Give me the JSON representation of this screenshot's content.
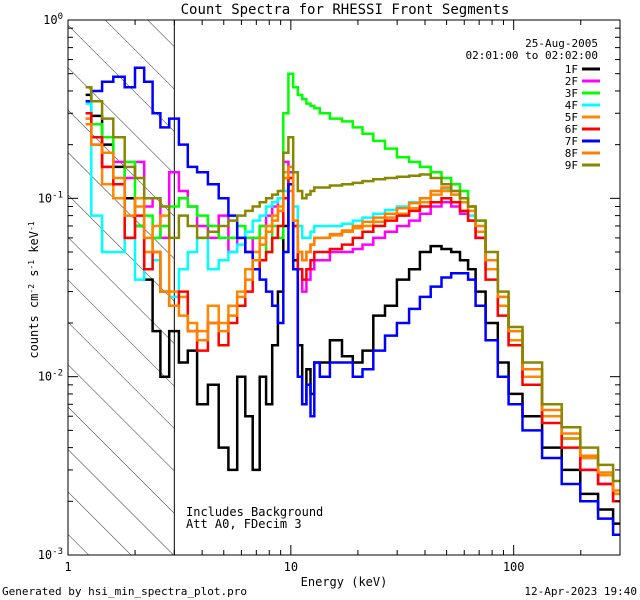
{
  "chart_data": {
    "type": "line",
    "title": "Count Spectra for RHESSI Front Segments",
    "xlabel": "Energy (keV)",
    "ylabel_main": "counts cm",
    "ylabel_e1": "-2",
    "ylabel_mid": " s",
    "ylabel_e2": "-1",
    "ylabel_end": " keV",
    "ylabel_e3": "-1",
    "xscale": "log",
    "yscale": "log",
    "xlim": [
      1,
      300
    ],
    "ylim": [
      0.001,
      1
    ],
    "x_ticks": [
      {
        "value": 1,
        "label": "1"
      },
      {
        "value": 10,
        "label": "10"
      },
      {
        "value": 100,
        "label": "100"
      }
    ],
    "y_ticks": [
      {
        "value": 1,
        "base": "10",
        "exp": "0"
      },
      {
        "value": 0.1,
        "base": "10",
        "exp": "-1"
      },
      {
        "value": 0.01,
        "base": "10",
        "exp": "-2"
      },
      {
        "value": 0.001,
        "base": "10",
        "exp": "-3"
      }
    ],
    "hatched_region": {
      "x_min": 1,
      "x_max": 3
    },
    "date": "25-Aug-2005",
    "time_range": "02:01:00 to 02:02:00",
    "legend_position": "top-right",
    "annotation_line1": "Includes Background",
    "annotation_line2": "Att A0, FDecim 3",
    "footer_left": "Generated by hsi_min_spectra_plot.pro",
    "footer_right": "12-Apr-2023 19:40",
    "series": [
      {
        "name": "1F",
        "color": "#000000",
        "x": [
          1.2,
          1.35,
          1.5,
          1.7,
          1.9,
          2.1,
          2.3,
          2.5,
          2.7,
          3.0,
          3.3,
          3.6,
          4.0,
          4.5,
          5.0,
          5.5,
          6.0,
          6.5,
          7.0,
          7.5,
          8.0,
          8.5,
          9.0,
          9.5,
          10.0,
          10.5,
          11.0,
          11.5,
          12.0,
          12.5,
          13.0,
          14,
          16,
          18,
          20,
          22,
          25,
          28,
          32,
          36,
          40,
          45,
          50,
          55,
          60,
          65,
          70,
          80,
          90,
          100,
          120,
          150,
          180,
          220,
          260,
          300
        ],
        "y": [
          0.38,
          0.29,
          0.2,
          0.15,
          0.1,
          0.07,
          0.035,
          0.018,
          0.01,
          0.018,
          0.012,
          0.014,
          0.007,
          0.009,
          0.004,
          0.003,
          0.01,
          0.006,
          0.003,
          0.01,
          0.007,
          0.015,
          0.03,
          0.07,
          0.12,
          0.045,
          0.015,
          0.007,
          0.011,
          0.008,
          0.012,
          0.012,
          0.016,
          0.013,
          0.012,
          0.014,
          0.022,
          0.025,
          0.035,
          0.04,
          0.05,
          0.054,
          0.052,
          0.05,
          0.045,
          0.04,
          0.03,
          0.02,
          0.012,
          0.008,
          0.006,
          0.004,
          0.003,
          0.0022,
          0.0018,
          0.0015
        ]
      },
      {
        "name": "2F",
        "color": "#ff00ff",
        "x": [
          1.2,
          1.35,
          1.5,
          1.7,
          1.9,
          2.1,
          2.3,
          2.5,
          2.7,
          3.0,
          3.3,
          3.6,
          4.0,
          4.5,
          5.0,
          5.5,
          6.0,
          6.5,
          7.0,
          7.5,
          8.0,
          8.5,
          9.0,
          9.5,
          10.0,
          10.5,
          11.0,
          11.5,
          12.0,
          12.5,
          13.0,
          14,
          16,
          18,
          20,
          22,
          25,
          28,
          32,
          36,
          40,
          45,
          50,
          55,
          60,
          65,
          70,
          80,
          90,
          100,
          120,
          150,
          180,
          220,
          260,
          300
        ],
        "y": [
          0.28,
          0.2,
          0.15,
          0.16,
          0.13,
          0.16,
          0.09,
          0.1,
          0.06,
          0.14,
          0.11,
          0.09,
          0.07,
          0.06,
          0.08,
          0.05,
          0.06,
          0.05,
          0.06,
          0.07,
          0.08,
          0.09,
          0.1,
          0.16,
          0.14,
          0.07,
          0.04,
          0.03,
          0.035,
          0.04,
          0.045,
          0.045,
          0.05,
          0.05,
          0.052,
          0.055,
          0.06,
          0.065,
          0.07,
          0.075,
          0.082,
          0.09,
          0.095,
          0.09,
          0.082,
          0.075,
          0.06,
          0.04,
          0.025,
          0.016,
          0.01,
          0.006,
          0.0045,
          0.003,
          0.0025,
          0.002
        ]
      },
      {
        "name": "3F",
        "color": "#00ff00",
        "x": [
          1.2,
          1.35,
          1.5,
          1.7,
          1.9,
          2.1,
          2.3,
          2.5,
          2.7,
          3.0,
          3.3,
          3.6,
          4.0,
          4.5,
          5.0,
          5.5,
          6.0,
          6.5,
          7.0,
          7.5,
          8.0,
          8.5,
          9.0,
          9.5,
          10.0,
          10.5,
          11.0,
          11.5,
          12.0,
          12.5,
          13.0,
          14,
          16,
          18,
          20,
          22,
          25,
          28,
          32,
          36,
          40,
          45,
          50,
          55,
          60,
          65,
          70,
          80,
          90,
          100,
          120,
          150,
          180,
          220,
          260,
          300
        ],
        "y": [
          0.3,
          0.26,
          0.22,
          0.12,
          0.16,
          0.07,
          0.08,
          0.06,
          0.07,
          0.09,
          0.1,
          0.09,
          0.08,
          0.07,
          0.06,
          0.06,
          0.07,
          0.06,
          0.06,
          0.07,
          0.05,
          0.07,
          0.06,
          0.3,
          0.5,
          0.42,
          0.38,
          0.36,
          0.34,
          0.33,
          0.32,
          0.3,
          0.28,
          0.27,
          0.25,
          0.23,
          0.21,
          0.19,
          0.17,
          0.16,
          0.15,
          0.14,
          0.13,
          0.12,
          0.11,
          0.09,
          0.075,
          0.045,
          0.028,
          0.018,
          0.011,
          0.006,
          0.0045,
          0.0035,
          0.0028,
          0.0022
        ]
      },
      {
        "name": "4F",
        "color": "#00ffff",
        "x": [
          1.2,
          1.35,
          1.5,
          1.7,
          1.9,
          2.1,
          2.3,
          2.5,
          2.7,
          3.0,
          3.3,
          3.6,
          4.0,
          4.5,
          5.0,
          5.5,
          6.0,
          6.5,
          7.0,
          7.5,
          8.0,
          8.5,
          9.0,
          9.5,
          10.0,
          10.5,
          11.0,
          11.5,
          12.0,
          12.5,
          13.0,
          14,
          16,
          18,
          20,
          22,
          25,
          28,
          32,
          36,
          40,
          45,
          50,
          55,
          60,
          65,
          70,
          80,
          90,
          100,
          120,
          150,
          180,
          220,
          260,
          300
        ],
        "y": [
          0.34,
          0.08,
          0.05,
          0.05,
          0.06,
          0.035,
          0.04,
          0.045,
          0.03,
          0.028,
          0.04,
          0.05,
          0.06,
          0.04,
          0.045,
          0.05,
          0.055,
          0.065,
          0.075,
          0.08,
          0.09,
          0.095,
          0.1,
          0.11,
          0.12,
          0.09,
          0.07,
          0.06,
          0.06,
          0.065,
          0.07,
          0.07,
          0.07,
          0.072,
          0.075,
          0.078,
          0.082,
          0.086,
          0.09,
          0.095,
          0.1,
          0.11,
          0.112,
          0.105,
          0.095,
          0.08,
          0.065,
          0.04,
          0.025,
          0.016,
          0.01,
          0.006,
          0.0045,
          0.0035,
          0.0028,
          0.002
        ]
      },
      {
        "name": "5F",
        "color": "#ff8800",
        "x": [
          1.2,
          1.35,
          1.5,
          1.7,
          1.9,
          2.1,
          2.3,
          2.5,
          2.7,
          3.0,
          3.3,
          3.6,
          4.0,
          4.5,
          5.0,
          5.5,
          6.0,
          6.5,
          7.0,
          7.5,
          8.0,
          8.5,
          9.0,
          9.5,
          10.0,
          10.5,
          11.0,
          11.5,
          12.0,
          12.5,
          13.0,
          14,
          16,
          18,
          20,
          22,
          25,
          28,
          32,
          36,
          40,
          45,
          50,
          55,
          60,
          65,
          70,
          80,
          90,
          100,
          120,
          150,
          180,
          220,
          260,
          300
        ],
        "y": [
          0.28,
          0.22,
          0.12,
          0.1,
          0.06,
          0.1,
          0.05,
          0.07,
          0.08,
          0.03,
          0.028,
          0.02,
          0.018,
          0.025,
          0.02,
          0.025,
          0.03,
          0.04,
          0.05,
          0.06,
          0.07,
          0.08,
          0.09,
          0.14,
          0.11,
          0.07,
          0.05,
          0.045,
          0.05,
          0.055,
          0.06,
          0.06,
          0.062,
          0.065,
          0.068,
          0.07,
          0.074,
          0.078,
          0.082,
          0.088,
          0.095,
          0.105,
          0.11,
          0.105,
          0.095,
          0.085,
          0.065,
          0.04,
          0.025,
          0.016,
          0.01,
          0.006,
          0.0045,
          0.0035,
          0.0028,
          0.0022
        ]
      },
      {
        "name": "6F",
        "color": "#ff0000",
        "x": [
          1.2,
          1.35,
          1.5,
          1.7,
          1.9,
          2.1,
          2.3,
          2.5,
          2.7,
          3.0,
          3.3,
          3.6,
          4.0,
          4.5,
          5.0,
          5.5,
          6.0,
          6.5,
          7.0,
          7.5,
          8.0,
          8.5,
          9.0,
          9.5,
          10.0,
          10.5,
          11.0,
          11.5,
          12.0,
          12.5,
          13.0,
          14,
          16,
          18,
          20,
          22,
          25,
          28,
          32,
          36,
          40,
          45,
          50,
          55,
          60,
          65,
          70,
          80,
          90,
          100,
          120,
          150,
          180,
          220,
          260,
          300
        ],
        "y": [
          0.3,
          0.22,
          0.15,
          0.12,
          0.06,
          0.08,
          0.04,
          0.05,
          0.03,
          0.025,
          0.03,
          0.018,
          0.014,
          0.02,
          0.015,
          0.02,
          0.025,
          0.03,
          0.04,
          0.045,
          0.05,
          0.06,
          0.07,
          0.1,
          0.13,
          0.07,
          0.04,
          0.035,
          0.04,
          0.045,
          0.05,
          0.05,
          0.052,
          0.055,
          0.06,
          0.065,
          0.07,
          0.075,
          0.08,
          0.085,
          0.09,
          0.095,
          0.1,
          0.095,
          0.085,
          0.075,
          0.06,
          0.035,
          0.022,
          0.015,
          0.009,
          0.0055,
          0.004,
          0.003,
          0.0025,
          0.002
        ]
      },
      {
        "name": "7F",
        "color": "#0000ff",
        "x": [
          1.2,
          1.35,
          1.5,
          1.7,
          1.9,
          2.1,
          2.3,
          2.5,
          2.7,
          3.0,
          3.3,
          3.6,
          4.0,
          4.5,
          5.0,
          5.5,
          6.0,
          6.5,
          7.0,
          7.5,
          8.0,
          8.5,
          9.0,
          9.5,
          10.0,
          10.5,
          11.0,
          11.5,
          12.0,
          12.5,
          13.0,
          14,
          16,
          18,
          20,
          22,
          25,
          28,
          32,
          36,
          40,
          45,
          50,
          55,
          60,
          65,
          70,
          80,
          90,
          100,
          120,
          150,
          180,
          220,
          260,
          300
        ],
        "y": [
          0.35,
          0.4,
          0.45,
          0.48,
          0.42,
          0.54,
          0.45,
          0.3,
          0.25,
          0.28,
          0.2,
          0.15,
          0.14,
          0.12,
          0.1,
          0.08,
          0.06,
          0.05,
          0.04,
          0.035,
          0.03,
          0.025,
          0.02,
          0.05,
          0.12,
          0.04,
          0.01,
          0.007,
          0.009,
          0.006,
          0.012,
          0.01,
          0.012,
          0.012,
          0.01,
          0.011,
          0.014,
          0.017,
          0.02,
          0.024,
          0.028,
          0.032,
          0.036,
          0.038,
          0.038,
          0.035,
          0.025,
          0.016,
          0.01,
          0.007,
          0.005,
          0.0035,
          0.0025,
          0.002,
          0.0016,
          0.0013
        ]
      },
      {
        "name": "8F",
        "color": "#ff8000",
        "x": [
          1.2,
          1.35,
          1.5,
          1.7,
          1.9,
          2.1,
          2.3,
          2.5,
          2.7,
          3.0,
          3.3,
          3.6,
          4.0,
          4.5,
          5.0,
          5.5,
          6.0,
          6.5,
          7.0,
          7.5,
          8.0,
          8.5,
          9.0,
          9.5,
          10.0,
          10.5,
          11.0,
          11.5,
          12.0,
          12.5,
          13.0,
          14,
          16,
          18,
          20,
          22,
          25,
          28,
          32,
          36,
          40,
          45,
          50,
          55,
          60,
          65,
          70,
          80,
          90,
          100,
          120,
          150,
          180,
          220,
          260,
          300
        ],
        "y": [
          0.26,
          0.2,
          0.18,
          0.13,
          0.08,
          0.09,
          0.06,
          0.05,
          0.03,
          0.025,
          0.022,
          0.018,
          0.016,
          0.02,
          0.018,
          0.022,
          0.028,
          0.035,
          0.045,
          0.055,
          0.065,
          0.075,
          0.085,
          0.13,
          0.15,
          0.075,
          0.05,
          0.045,
          0.05,
          0.055,
          0.06,
          0.06,
          0.063,
          0.066,
          0.07,
          0.074,
          0.078,
          0.082,
          0.088,
          0.094,
          0.1,
          0.11,
          0.115,
          0.11,
          0.1,
          0.09,
          0.07,
          0.045,
          0.028,
          0.018,
          0.011,
          0.0065,
          0.0048,
          0.0036,
          0.0029,
          0.0023
        ]
      },
      {
        "name": "9F",
        "color": "#888800",
        "x": [
          1.2,
          1.35,
          1.5,
          1.7,
          1.9,
          2.1,
          2.3,
          2.5,
          2.7,
          3.0,
          3.3,
          3.6,
          4.0,
          4.5,
          5.0,
          5.5,
          6.0,
          6.5,
          7.0,
          7.5,
          8.0,
          8.5,
          9.0,
          9.5,
          10.0,
          10.5,
          11.0,
          11.5,
          12.0,
          12.5,
          13.0,
          14,
          16,
          18,
          20,
          22,
          25,
          28,
          32,
          36,
          40,
          45,
          50,
          55,
          60,
          65,
          70,
          80,
          90,
          100,
          120,
          150,
          180,
          220,
          260,
          300
        ],
        "y": [
          0.42,
          0.35,
          0.28,
          0.22,
          0.15,
          0.13,
          0.1,
          0.1,
          0.09,
          0.06,
          0.08,
          0.07,
          0.06,
          0.065,
          0.07,
          0.075,
          0.08,
          0.085,
          0.09,
          0.095,
          0.1,
          0.105,
          0.11,
          0.18,
          0.22,
          0.14,
          0.11,
          0.1,
          0.105,
          0.11,
          0.115,
          0.115,
          0.118,
          0.12,
          0.122,
          0.125,
          0.128,
          0.13,
          0.132,
          0.134,
          0.136,
          0.13,
          0.12,
          0.11,
          0.1,
          0.09,
          0.075,
          0.05,
          0.03,
          0.019,
          0.012,
          0.007,
          0.0052,
          0.004,
          0.0032,
          0.0026
        ]
      }
    ]
  }
}
